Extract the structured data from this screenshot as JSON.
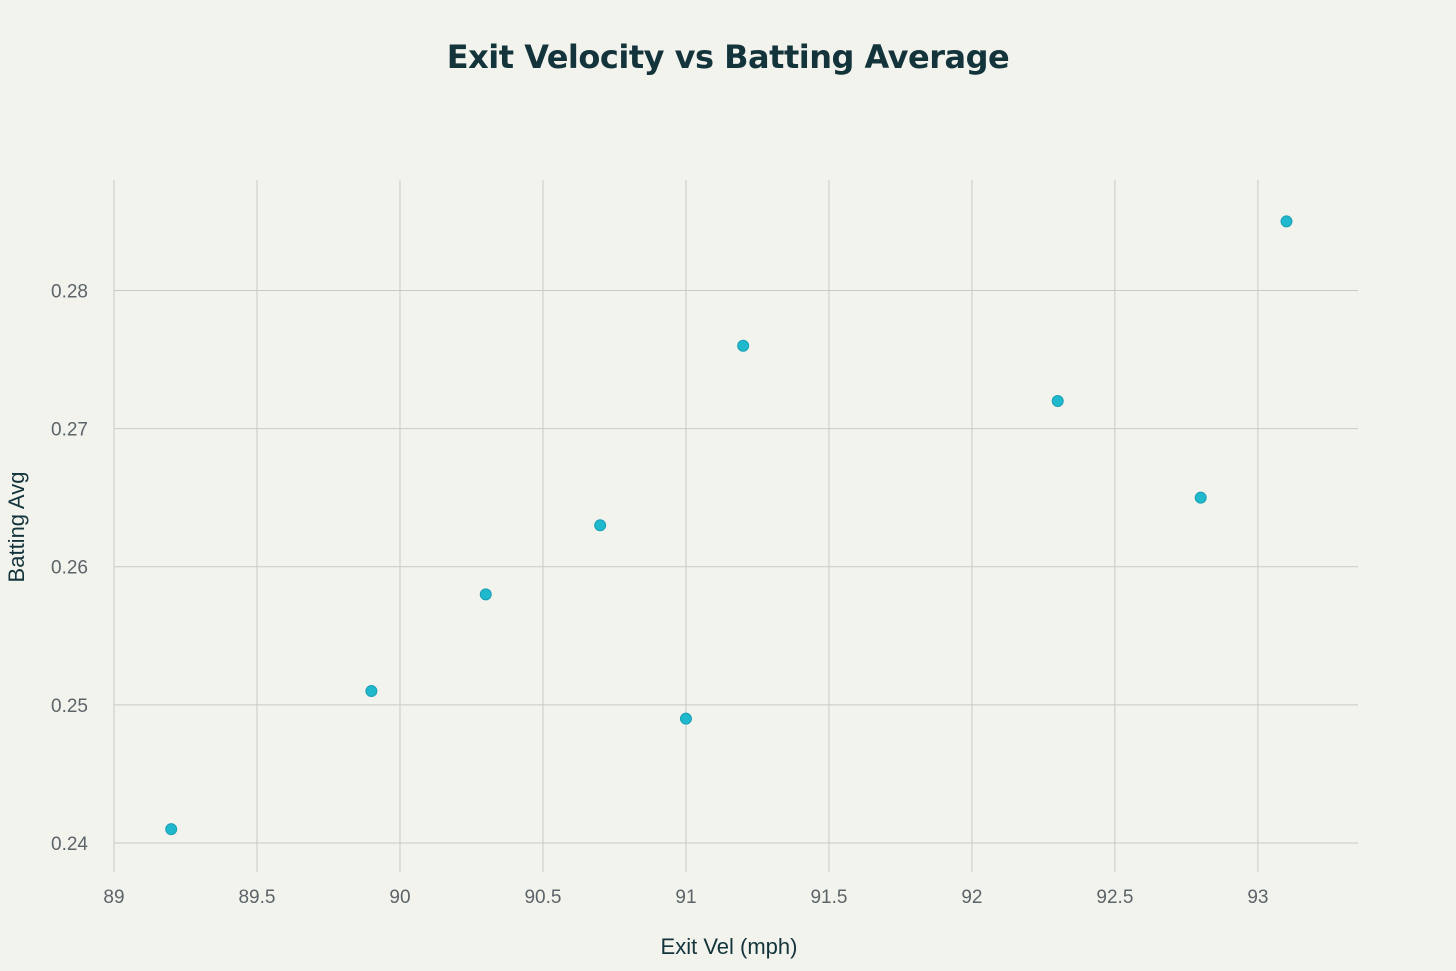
{
  "colors": {
    "background": "#f3f3ee",
    "marker": "#1fb8cd",
    "grid": "#c9c9c4",
    "title": "#13343b",
    "tick": "#5b6468"
  },
  "chart_data": {
    "type": "scatter",
    "title": "Exit Velocity vs Batting Average",
    "xlabel": "Exit Vel (mph)",
    "ylabel": "Batting Avg",
    "xlim": [
      89,
      93.35
    ],
    "ylim": [
      0.2379,
      0.288
    ],
    "xticks": [
      89,
      89.5,
      90,
      90.5,
      91,
      91.5,
      92,
      92.5,
      93
    ],
    "xtick_labels": [
      "89",
      "89.5",
      "90",
      "90.5",
      "91",
      "91.5",
      "92",
      "92.5",
      "93"
    ],
    "yticks": [
      0.24,
      0.25,
      0.26,
      0.27,
      0.28
    ],
    "ytick_labels": [
      "0.24",
      "0.25",
      "0.26",
      "0.27",
      "0.28"
    ],
    "grid": true,
    "legend": "none",
    "series": [
      {
        "points": [
          {
            "x": 89.2,
            "y": 0.241
          },
          {
            "x": 89.9,
            "y": 0.251
          },
          {
            "x": 90.3,
            "y": 0.258
          },
          {
            "x": 90.7,
            "y": 0.263
          },
          {
            "x": 91.0,
            "y": 0.249
          },
          {
            "x": 91.2,
            "y": 0.276
          },
          {
            "x": 92.3,
            "y": 0.272
          },
          {
            "x": 92.8,
            "y": 0.265
          },
          {
            "x": 93.1,
            "y": 0.285
          }
        ]
      }
    ]
  }
}
